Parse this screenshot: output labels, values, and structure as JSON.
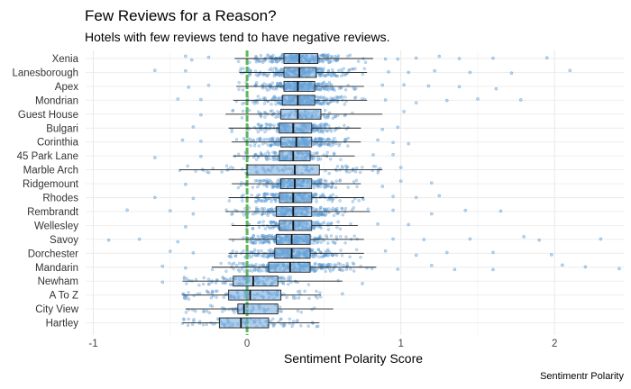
{
  "chart_data": {
    "type": "boxplot",
    "title": "Few Reviews for a Reason?",
    "subtitle": "Hotels with few reviews tend to have negative reviews.",
    "xlabel": "Sentiment Polarity Score",
    "ylabel": "",
    "caption": "Sentimentr Polarity",
    "xlim": [
      -1.05,
      2.45
    ],
    "xticks": [
      -1,
      0,
      1,
      2
    ],
    "reference_line": {
      "x": 0,
      "color": "#5cb85c"
    },
    "grid": true,
    "point_color": "#5b9bd5",
    "box_fill": "#6fa8dc",
    "categories": [
      "Xenia",
      "Lanesborough",
      "Apex",
      "Mondrian",
      "Guest House",
      "Bulgari",
      "Corinthia",
      "45 Park Lane",
      "Marble Arch",
      "Ridgemount",
      "Rhodes",
      "Rembrandt",
      "Wellesley",
      "Savoy",
      "Dorchester",
      "Mandarin",
      "Newham",
      "A To Z",
      "City View",
      "Hartley"
    ],
    "boxes": [
      {
        "name": "Xenia",
        "whisker_low": -0.08,
        "q1": 0.24,
        "median": 0.34,
        "q3": 0.46,
        "whisker_high": 0.82,
        "density": 1.0,
        "outliers": [
          -0.36,
          -0.4,
          -0.25,
          0.9,
          0.98,
          1.1,
          1.25,
          1.38,
          1.6,
          1.95
        ]
      },
      {
        "name": "Lanesborough",
        "whisker_low": -0.05,
        "q1": 0.24,
        "median": 0.34,
        "q3": 0.45,
        "whisker_high": 0.78,
        "density": 1.0,
        "outliers": [
          -0.6,
          -0.4,
          0.92,
          1.05,
          1.22,
          1.45,
          1.72,
          2.1
        ]
      },
      {
        "name": "Apex",
        "whisker_low": -0.07,
        "q1": 0.24,
        "median": 0.33,
        "q3": 0.44,
        "whisker_high": 0.76,
        "density": 1.0,
        "outliers": [
          -0.38,
          -0.25,
          0.88,
          1.02,
          1.18,
          1.38,
          1.62
        ]
      },
      {
        "name": "Mondrian",
        "whisker_low": -0.09,
        "q1": 0.23,
        "median": 0.33,
        "q3": 0.44,
        "whisker_high": 0.78,
        "density": 1.0,
        "outliers": [
          -0.45,
          -0.3,
          0.9,
          1.1,
          1.3,
          1.5,
          1.78
        ]
      },
      {
        "name": "Guest House",
        "whisker_low": -0.14,
        "q1": 0.22,
        "median": 0.33,
        "q3": 0.48,
        "whisker_high": 0.88,
        "density": 0.35,
        "outliers": [
          -0.3,
          1.02
        ]
      },
      {
        "name": "Bulgari",
        "whisker_low": -0.12,
        "q1": 0.21,
        "median": 0.3,
        "q3": 0.42,
        "whisker_high": 0.74,
        "density": 0.8,
        "outliers": [
          -0.35,
          0.88,
          0.98
        ]
      },
      {
        "name": "Corinthia",
        "whisker_low": -0.1,
        "q1": 0.22,
        "median": 0.32,
        "q3": 0.42,
        "whisker_high": 0.74,
        "density": 0.95,
        "outliers": [
          -0.42,
          -0.3,
          0.85,
          0.95,
          1.05
        ]
      },
      {
        "name": "45 Park Lane",
        "whisker_low": -0.09,
        "q1": 0.21,
        "median": 0.3,
        "q3": 0.41,
        "whisker_high": 0.7,
        "density": 0.55,
        "outliers": [
          -0.6,
          -0.3,
          0.82,
          0.95
        ]
      },
      {
        "name": "Marble Arch",
        "whisker_low": -0.44,
        "q1": 0.0,
        "median": 0.31,
        "q3": 0.47,
        "whisker_high": 0.88,
        "density": 0.3,
        "outliers": [
          1.0
        ]
      },
      {
        "name": "Ridgemount",
        "whisker_low": -0.1,
        "q1": 0.22,
        "median": 0.31,
        "q3": 0.42,
        "whisker_high": 0.74,
        "density": 0.9,
        "outliers": [
          -0.4,
          0.88,
          1.0,
          1.2
        ]
      },
      {
        "name": "Rhodes",
        "whisker_low": -0.12,
        "q1": 0.21,
        "median": 0.3,
        "q3": 0.42,
        "whisker_high": 0.76,
        "density": 0.85,
        "outliers": [
          -0.6,
          -0.35,
          0.95,
          1.1,
          1.25
        ]
      },
      {
        "name": "Rembrandt",
        "whisker_low": -0.14,
        "q1": 0.19,
        "median": 0.3,
        "q3": 0.42,
        "whisker_high": 0.8,
        "density": 1.0,
        "outliers": [
          -0.78,
          -0.5,
          -0.35,
          0.95,
          1.2,
          1.42,
          1.65
        ]
      },
      {
        "name": "Wellesley",
        "whisker_low": -0.1,
        "q1": 0.21,
        "median": 0.3,
        "q3": 0.42,
        "whisker_high": 0.72,
        "density": 0.6,
        "outliers": [
          -0.4,
          0.85,
          1.05
        ]
      },
      {
        "name": "Savoy",
        "whisker_low": -0.12,
        "q1": 0.19,
        "median": 0.29,
        "q3": 0.41,
        "whisker_high": 0.76,
        "density": 1.0,
        "outliers": [
          -0.9,
          -0.7,
          -0.45,
          0.95,
          1.15,
          1.45,
          1.8,
          1.9,
          2.3
        ]
      },
      {
        "name": "Dorchester",
        "whisker_low": -0.12,
        "q1": 0.18,
        "median": 0.29,
        "q3": 0.41,
        "whisker_high": 0.76,
        "density": 1.0,
        "outliers": [
          -0.5,
          -0.35,
          0.9,
          1.1,
          1.3,
          1.6,
          1.98
        ]
      },
      {
        "name": "Mandarin",
        "whisker_low": -0.23,
        "q1": 0.14,
        "median": 0.28,
        "q3": 0.41,
        "whisker_high": 0.84,
        "density": 1.0,
        "outliers": [
          -0.55,
          -0.4,
          0.98,
          1.2,
          1.35,
          1.6,
          2.05,
          2.2,
          2.42
        ]
      },
      {
        "name": "Newham",
        "whisker_low": -0.42,
        "q1": -0.09,
        "median": 0.04,
        "q3": 0.2,
        "whisker_high": 0.62,
        "density": 0.4,
        "outliers": [
          -0.55,
          0.75
        ]
      },
      {
        "name": "A To Z",
        "whisker_low": -0.42,
        "q1": -0.12,
        "median": 0.02,
        "q3": 0.22,
        "whisker_high": 0.48,
        "density": 0.35,
        "outliers": [
          0.62
        ]
      },
      {
        "name": "City View",
        "whisker_low": -0.4,
        "q1": -0.06,
        "median": -0.02,
        "q3": 0.2,
        "whisker_high": 0.56,
        "density": 0.15,
        "outliers": []
      },
      {
        "name": "Hartley",
        "whisker_low": -0.42,
        "q1": -0.18,
        "median": -0.04,
        "q3": 0.14,
        "whisker_high": 0.47,
        "density": 0.3,
        "outliers": []
      }
    ]
  }
}
